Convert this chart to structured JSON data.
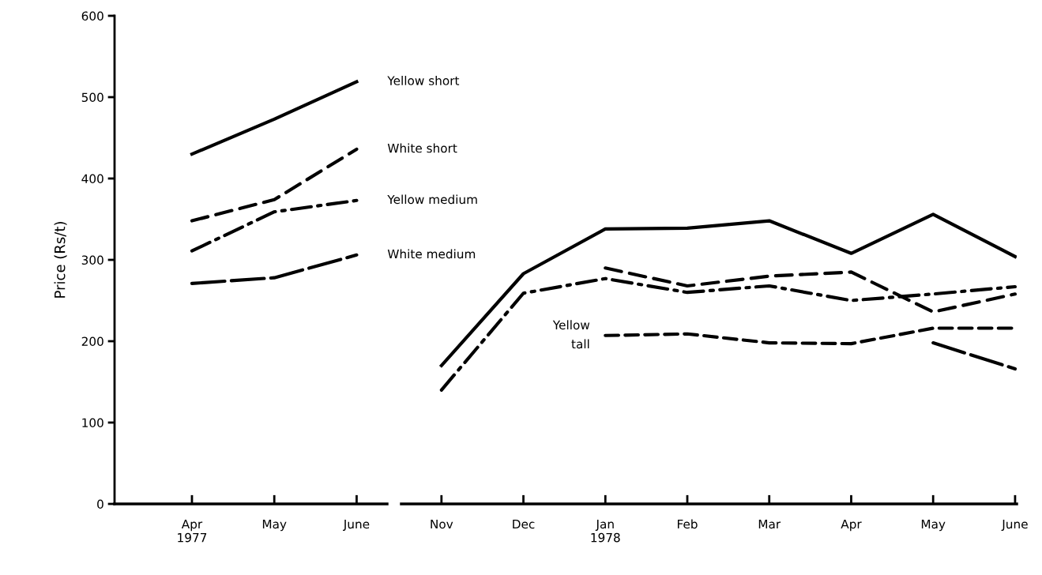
{
  "chart_data": [
    {
      "type": "line",
      "ylabel": "Price (Rs/t)",
      "categories": [
        "Apr\n1977",
        "May",
        "June"
      ],
      "ylim": [
        0,
        600
      ],
      "yticks": [
        0,
        100,
        200,
        300,
        400,
        500,
        600
      ],
      "grid": false,
      "legend": false,
      "marker": "none",
      "series": [
        {
          "color": "#000000",
          "line_style": "solid",
          "values": [
            430,
            473,
            519
          ]
        },
        {
          "color": "#000000",
          "line_style": "dashed",
          "values": [
            348,
            374,
            436
          ]
        },
        {
          "color": "#000000",
          "line_style": "dashdot",
          "values": [
            311,
            359,
            373
          ]
        },
        {
          "color": "#000000",
          "line_style": "longdash",
          "values": [
            271,
            278,
            306
          ]
        }
      ],
      "annotations": [
        {
          "text": "Yellow short",
          "x": "June",
          "y": 519
        },
        {
          "text": "White short",
          "x": "June",
          "y": 436
        },
        {
          "text": "Yellow medium",
          "x": "June",
          "y": 373
        },
        {
          "text": "White medium",
          "x": "June",
          "y": 306
        }
      ]
    },
    {
      "type": "line",
      "categories": [
        "Nov",
        "Dec",
        "Jan\n1978",
        "Feb",
        "Mar",
        "Apr",
        "May",
        "June"
      ],
      "ylim": [
        0,
        600
      ],
      "tick_labels": "x",
      "grid": false,
      "legend": false,
      "marker": "none",
      "series": [
        {
          "color": "#000000",
          "line_style": "solid",
          "values": [
            170,
            283,
            338,
            339,
            348,
            308,
            356,
            304
          ]
        },
        {
          "color": "#000000",
          "line_style": "dashed",
          "values": [
            null,
            null,
            290,
            268,
            280,
            285,
            236,
            258
          ]
        },
        {
          "color": "#000000",
          "line_style": "dashdot",
          "values": [
            140,
            259,
            277,
            260,
            268,
            250,
            258,
            267
          ]
        },
        {
          "color": "#000000",
          "line_style": "longdash",
          "values": [
            null,
            null,
            null,
            null,
            null,
            null,
            198,
            166
          ]
        },
        {
          "color": "#000000",
          "line_style": "shortdash",
          "values": [
            null,
            null,
            207,
            209,
            198,
            197,
            216,
            216
          ]
        }
      ],
      "annotations": [
        {
          "text": "Yellow\ntall",
          "x": "Jan\n1978",
          "y": 207
        }
      ]
    }
  ]
}
